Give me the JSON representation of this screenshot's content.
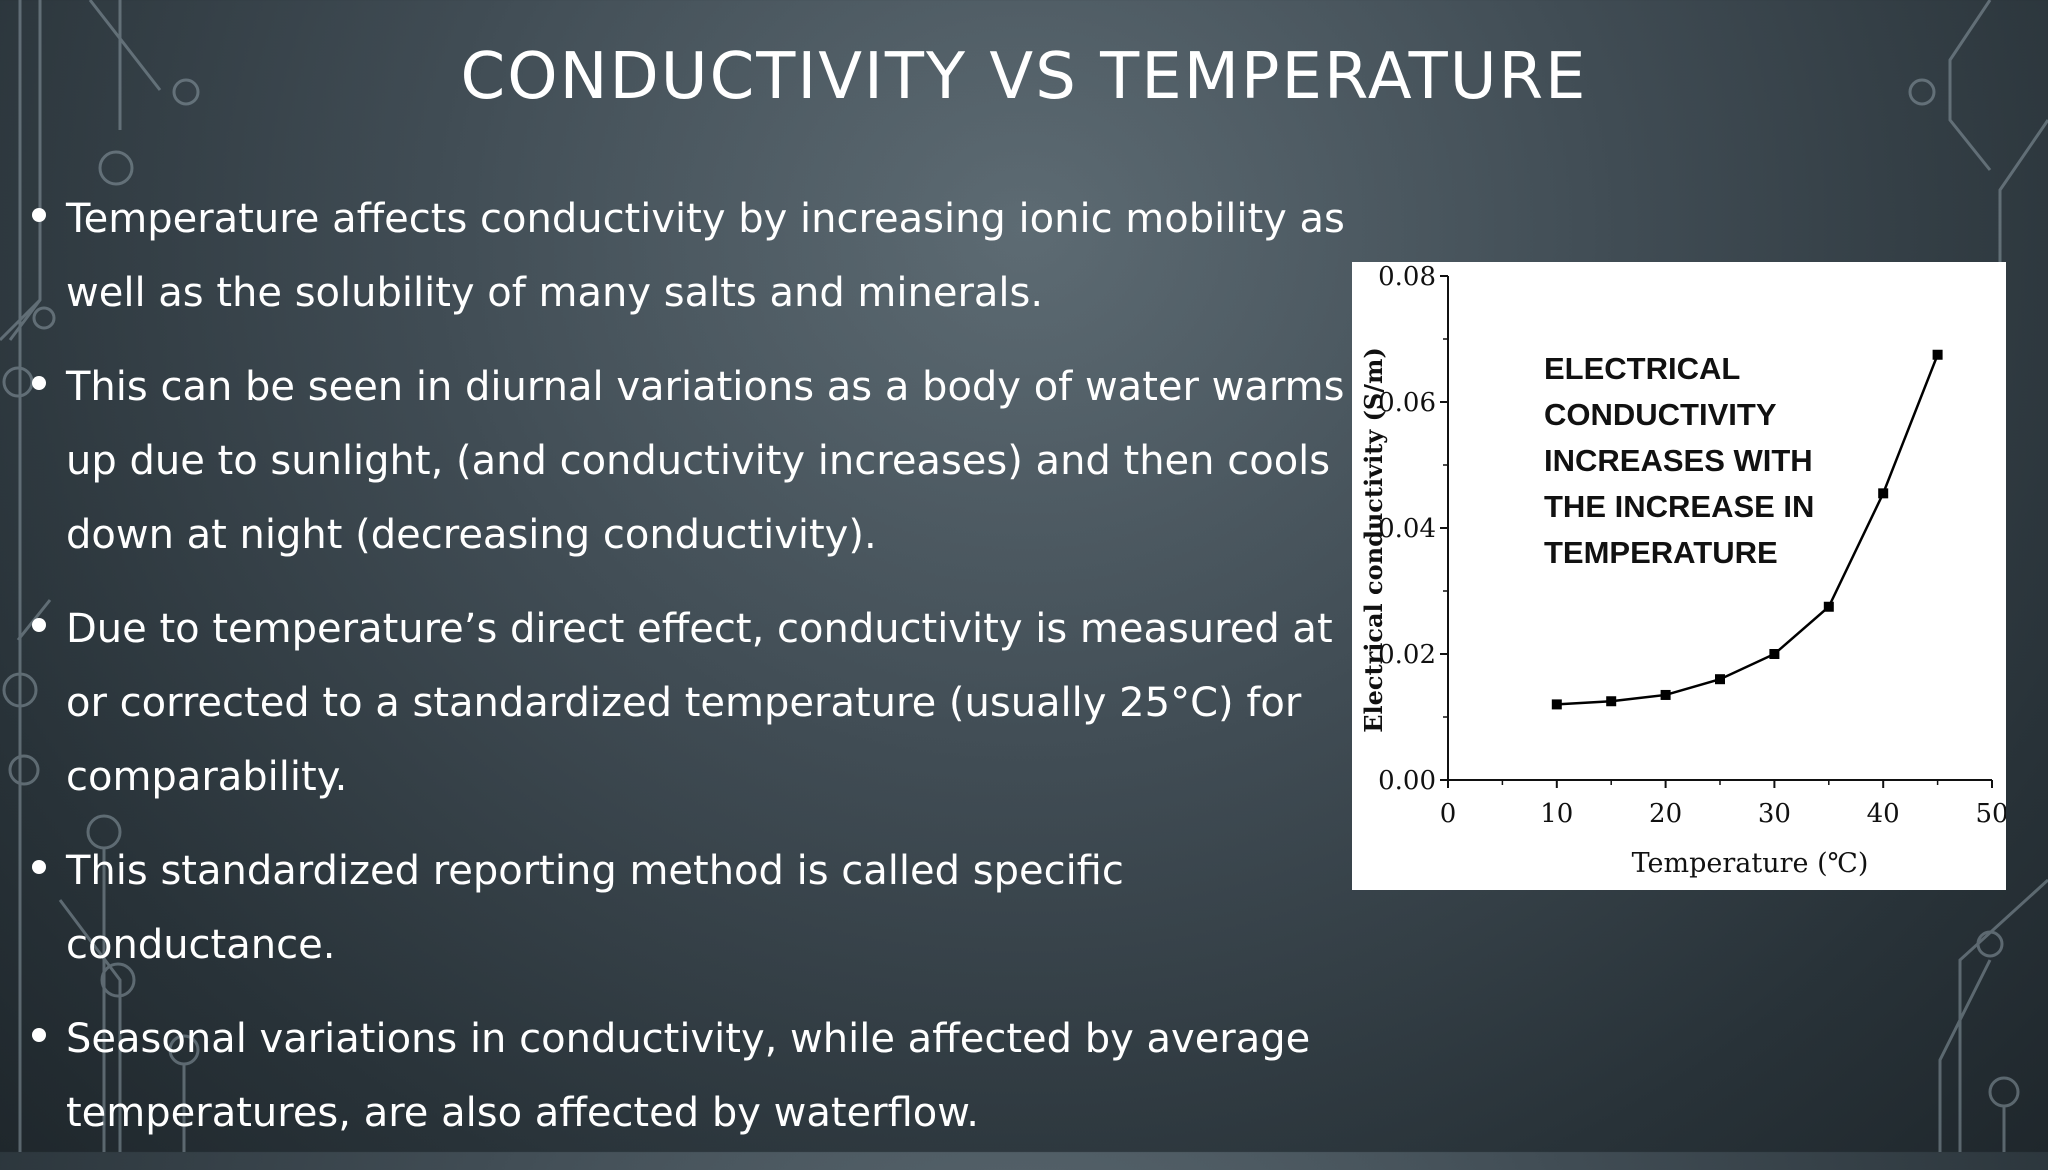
{
  "slide": {
    "title": "CONDUCTIVITY VS TEMPERATURE"
  },
  "bullets": [
    "Temperature affects conductivity by increasing ionic mobility as well as the solubility of many salts and minerals.",
    "This can be seen in diurnal variations as a body of water warms up due to sunlight, (and conductivity increases) and then cools down at night (decreasing conductivity).",
    "Due to temperature’s direct effect, conductivity is measured at or corrected to a standardized temperature (usually 25°C) for comparability.",
    "This standardized reporting method is called specific conductance.",
    "Seasonal variations in conductivity, while affected by average temperatures, are also affected by waterflow."
  ],
  "chart_data": {
    "type": "line",
    "title": "",
    "xlabel": "Temperature (℃)",
    "ylabel": "Electrical conductivity (S/m)",
    "x": [
      10,
      15,
      20,
      25,
      30,
      35,
      40,
      45
    ],
    "series": [
      {
        "name": "Electrical conductivity",
        "values": [
          0.012,
          0.0125,
          0.0135,
          0.016,
          0.02,
          0.0275,
          0.0455,
          0.0675
        ]
      }
    ],
    "xlim": [
      0,
      50
    ],
    "ylim": [
      0,
      0.08
    ],
    "xticks": [
      "0",
      "10",
      "20",
      "30",
      "40",
      "50"
    ],
    "yticks": [
      "0.00",
      "0.02",
      "0.04",
      "0.06",
      "0.08"
    ],
    "annotation": "ELECTRICAL CONDUCTIVITY INCREASES WITH THE INCREASE IN TEMPERATURE",
    "marker_color": "#000000",
    "line_color": "#000000"
  }
}
